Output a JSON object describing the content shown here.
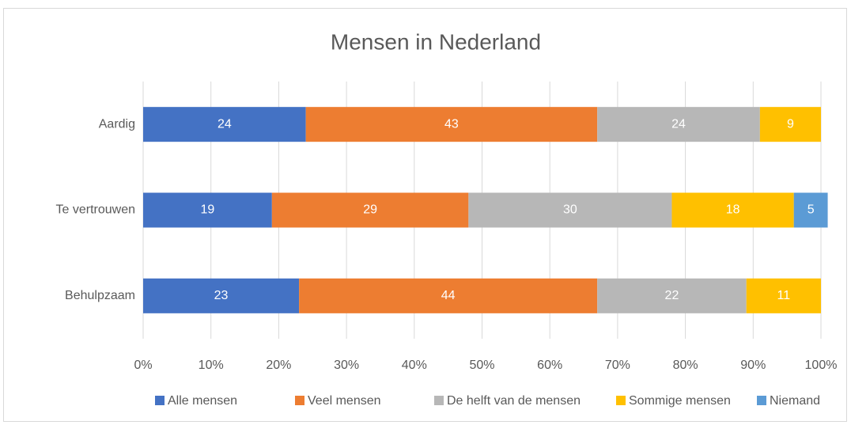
{
  "chart_data": {
    "type": "stacked_barh",
    "title": "Mensen in Nederland",
    "categories": [
      "Aardig",
      "Te vertrouwen",
      "Behulpzaam"
    ],
    "series": [
      {
        "name": "Alle mensen",
        "color": "#4472c4",
        "values": [
          24,
          19,
          23
        ]
      },
      {
        "name": "Veel mensen",
        "color": "#ed7d31",
        "values": [
          43,
          29,
          44
        ]
      },
      {
        "name": "De helft van de mensen",
        "color": "#b7b7b7",
        "values": [
          24,
          30,
          22
        ]
      },
      {
        "name": "Sommige mensen",
        "color": "#ffc000",
        "values": [
          9,
          18,
          11
        ]
      },
      {
        "name": "Niemand",
        "color": "#5b9bd5",
        "values": [
          null,
          5,
          null
        ]
      }
    ],
    "xlim": [
      0,
      100
    ],
    "xticks": [
      {
        "value": 0,
        "label": "0%"
      },
      {
        "value": 10,
        "label": "10%"
      },
      {
        "value": 20,
        "label": "20%"
      },
      {
        "value": 30,
        "label": "30%"
      },
      {
        "value": 40,
        "label": "40%"
      },
      {
        "value": 50,
        "label": "50%"
      },
      {
        "value": 60,
        "label": "60%"
      },
      {
        "value": 70,
        "label": "70%"
      },
      {
        "value": 80,
        "label": "80%"
      },
      {
        "value": 90,
        "label": "90%"
      },
      {
        "value": 100,
        "label": "100%"
      }
    ],
    "grid": true,
    "legend": "bottom"
  }
}
